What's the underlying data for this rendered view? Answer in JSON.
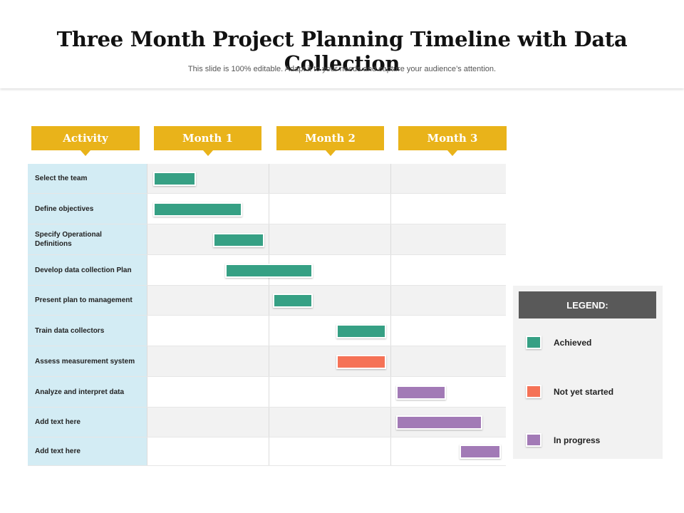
{
  "header": {
    "title": "Three Month Project Planning Timeline with Data Collection",
    "subtitle": "This slide is 100% editable. Adapt it to your needs and capture your audience’s attention."
  },
  "columns": {
    "activity": "Activity",
    "month1": "Month 1",
    "month2": "Month 2",
    "month3": "Month 3"
  },
  "colors": {
    "header_gold": "#E9B31A",
    "label_blue": "#D3ECF4",
    "achieved": "#36A084",
    "not_yet_started": "#F57256",
    "in_progress": "#A27AB6",
    "legend_header": "#595959"
  },
  "activities": [
    {
      "label": "Select the team",
      "start_month": 0.05,
      "end_month": 0.4,
      "status": "achieved"
    },
    {
      "label": "Define objectives",
      "start_month": 0.05,
      "end_month": 0.78,
      "status": "achieved"
    },
    {
      "label": "Specify Operational Definitions",
      "start_month": 0.54,
      "end_month": 0.96,
      "status": "achieved"
    },
    {
      "label": "Develop data collection Plan",
      "start_month": 0.64,
      "end_month": 1.36,
      "status": "achieved"
    },
    {
      "label": "Present plan to management",
      "start_month": 1.03,
      "end_month": 1.36,
      "status": "achieved"
    },
    {
      "label": "Train data collectors",
      "start_month": 1.55,
      "end_month": 1.96,
      "status": "achieved"
    },
    {
      "label": "Assess measurement system",
      "start_month": 1.55,
      "end_month": 1.96,
      "status": "not_yet_started"
    },
    {
      "label": "Analyze and interpret data",
      "start_month": 2.04,
      "end_month": 2.45,
      "status": "in_progress"
    },
    {
      "label": "Add text here",
      "start_month": 2.04,
      "end_month": 2.75,
      "status": "in_progress"
    },
    {
      "label": "Add text here",
      "start_month": 2.56,
      "end_month": 2.9,
      "status": "in_progress"
    }
  ],
  "legend": {
    "title": "LEGEND:",
    "items": [
      {
        "key": "achieved",
        "label": "Achieved"
      },
      {
        "key": "not_yet_started",
        "label": "Not yet started"
      },
      {
        "key": "in_progress",
        "label": "In progress"
      }
    ]
  }
}
